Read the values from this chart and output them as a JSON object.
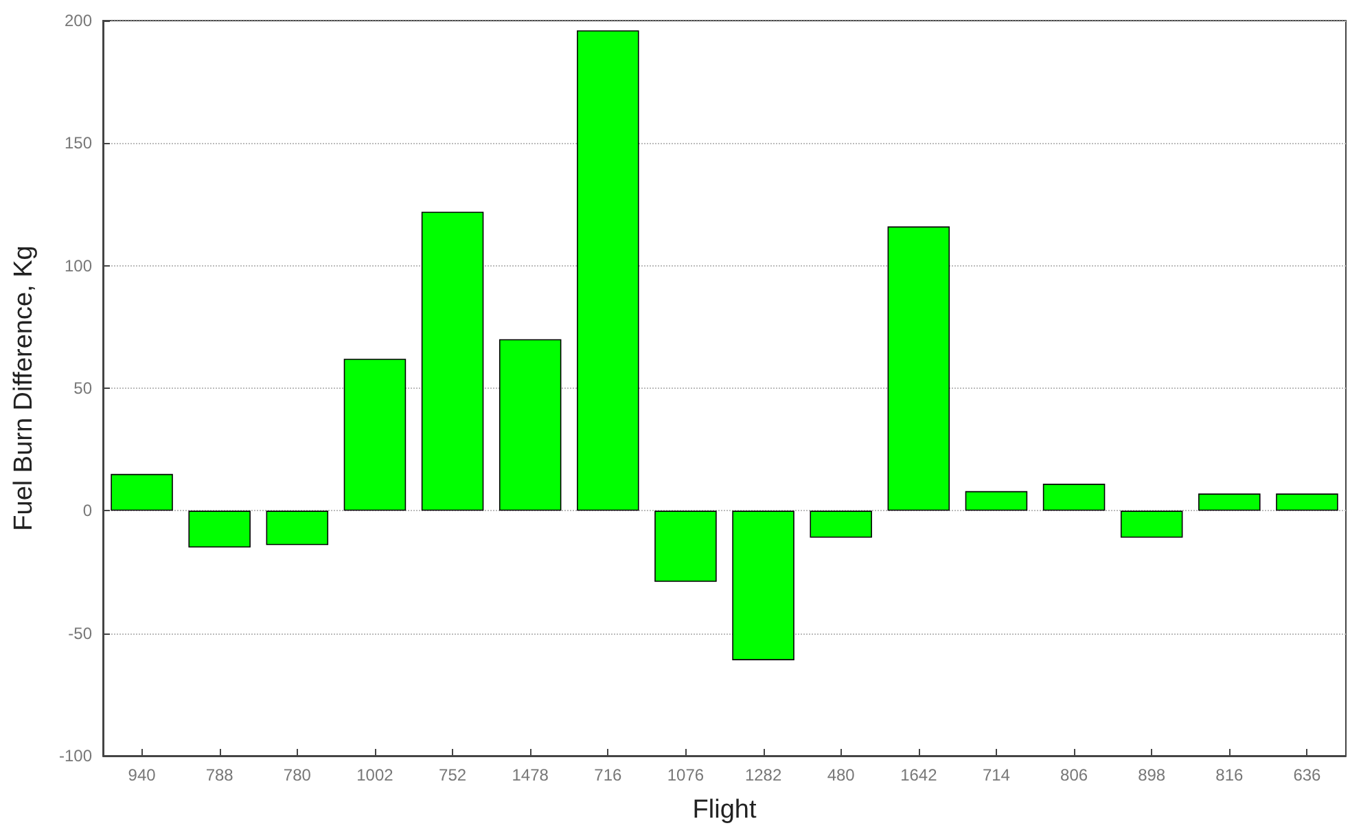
{
  "chart_data": {
    "type": "bar",
    "xlabel": "Flight",
    "ylabel": "Fuel Burn Difference, Kg",
    "categories": [
      "940",
      "788",
      "780",
      "1002",
      "752",
      "1478",
      "716",
      "1076",
      "1282",
      "480",
      "1642",
      "714",
      "806",
      "898",
      "816",
      "636"
    ],
    "values": [
      15,
      -15,
      -14,
      62,
      122,
      70,
      196,
      -29,
      -61,
      -11,
      116,
      8,
      11,
      -11,
      7,
      7
    ],
    "color": "#00ff00",
    "ylim": [
      -100,
      200
    ],
    "yticks": [
      -100,
      -50,
      0,
      50,
      100,
      150,
      200
    ],
    "grid": "y"
  }
}
